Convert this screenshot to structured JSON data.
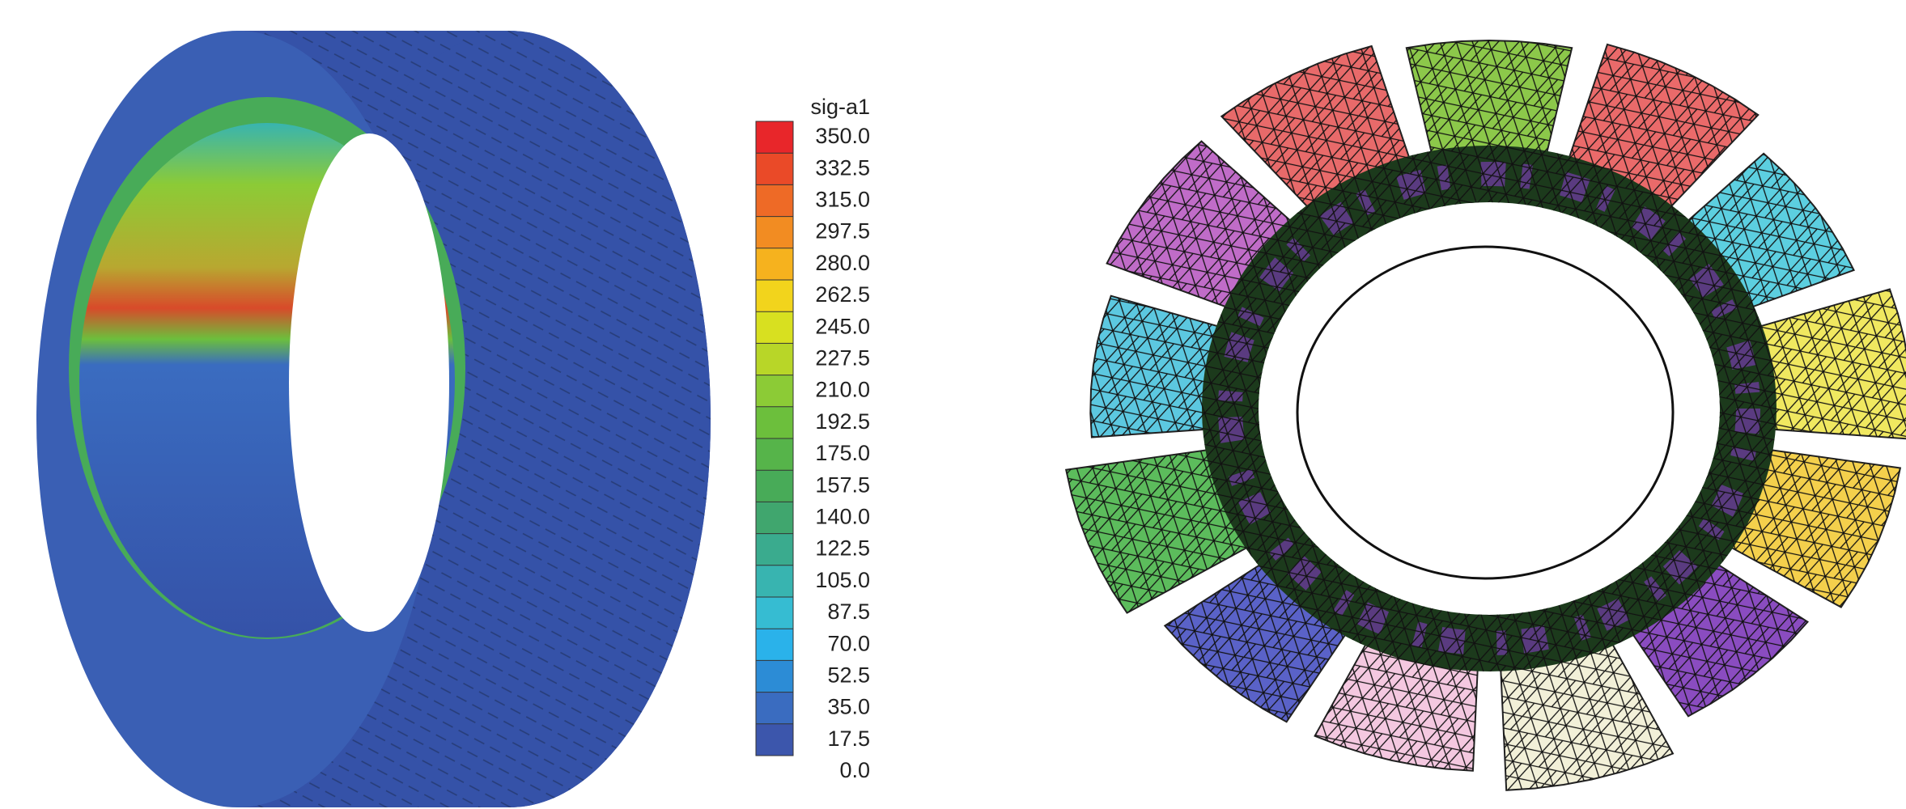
{
  "legend": {
    "title": "sig-a1",
    "labels": [
      "350.0",
      "332.5",
      "315.0",
      "297.5",
      "280.0",
      "262.5",
      "245.0",
      "227.5",
      "210.0",
      "192.5",
      "175.0",
      "157.5",
      "140.0",
      "122.5",
      "105.0",
      "87.5",
      "70.0",
      "52.5",
      "35.0",
      "17.5",
      "0.0"
    ],
    "colors": [
      "#e8262a",
      "#ea4a28",
      "#ee6a26",
      "#f28c22",
      "#f6b21e",
      "#f2d41c",
      "#d8e020",
      "#b8d628",
      "#8ccb36",
      "#6cbf3c",
      "#56b44a",
      "#48ab58",
      "#40a66e",
      "#3aab8e",
      "#38b4b0",
      "#36bcd2",
      "#2ab2ea",
      "#2c8cd6",
      "#3a6cc0",
      "#3c56ac"
    ]
  }
}
